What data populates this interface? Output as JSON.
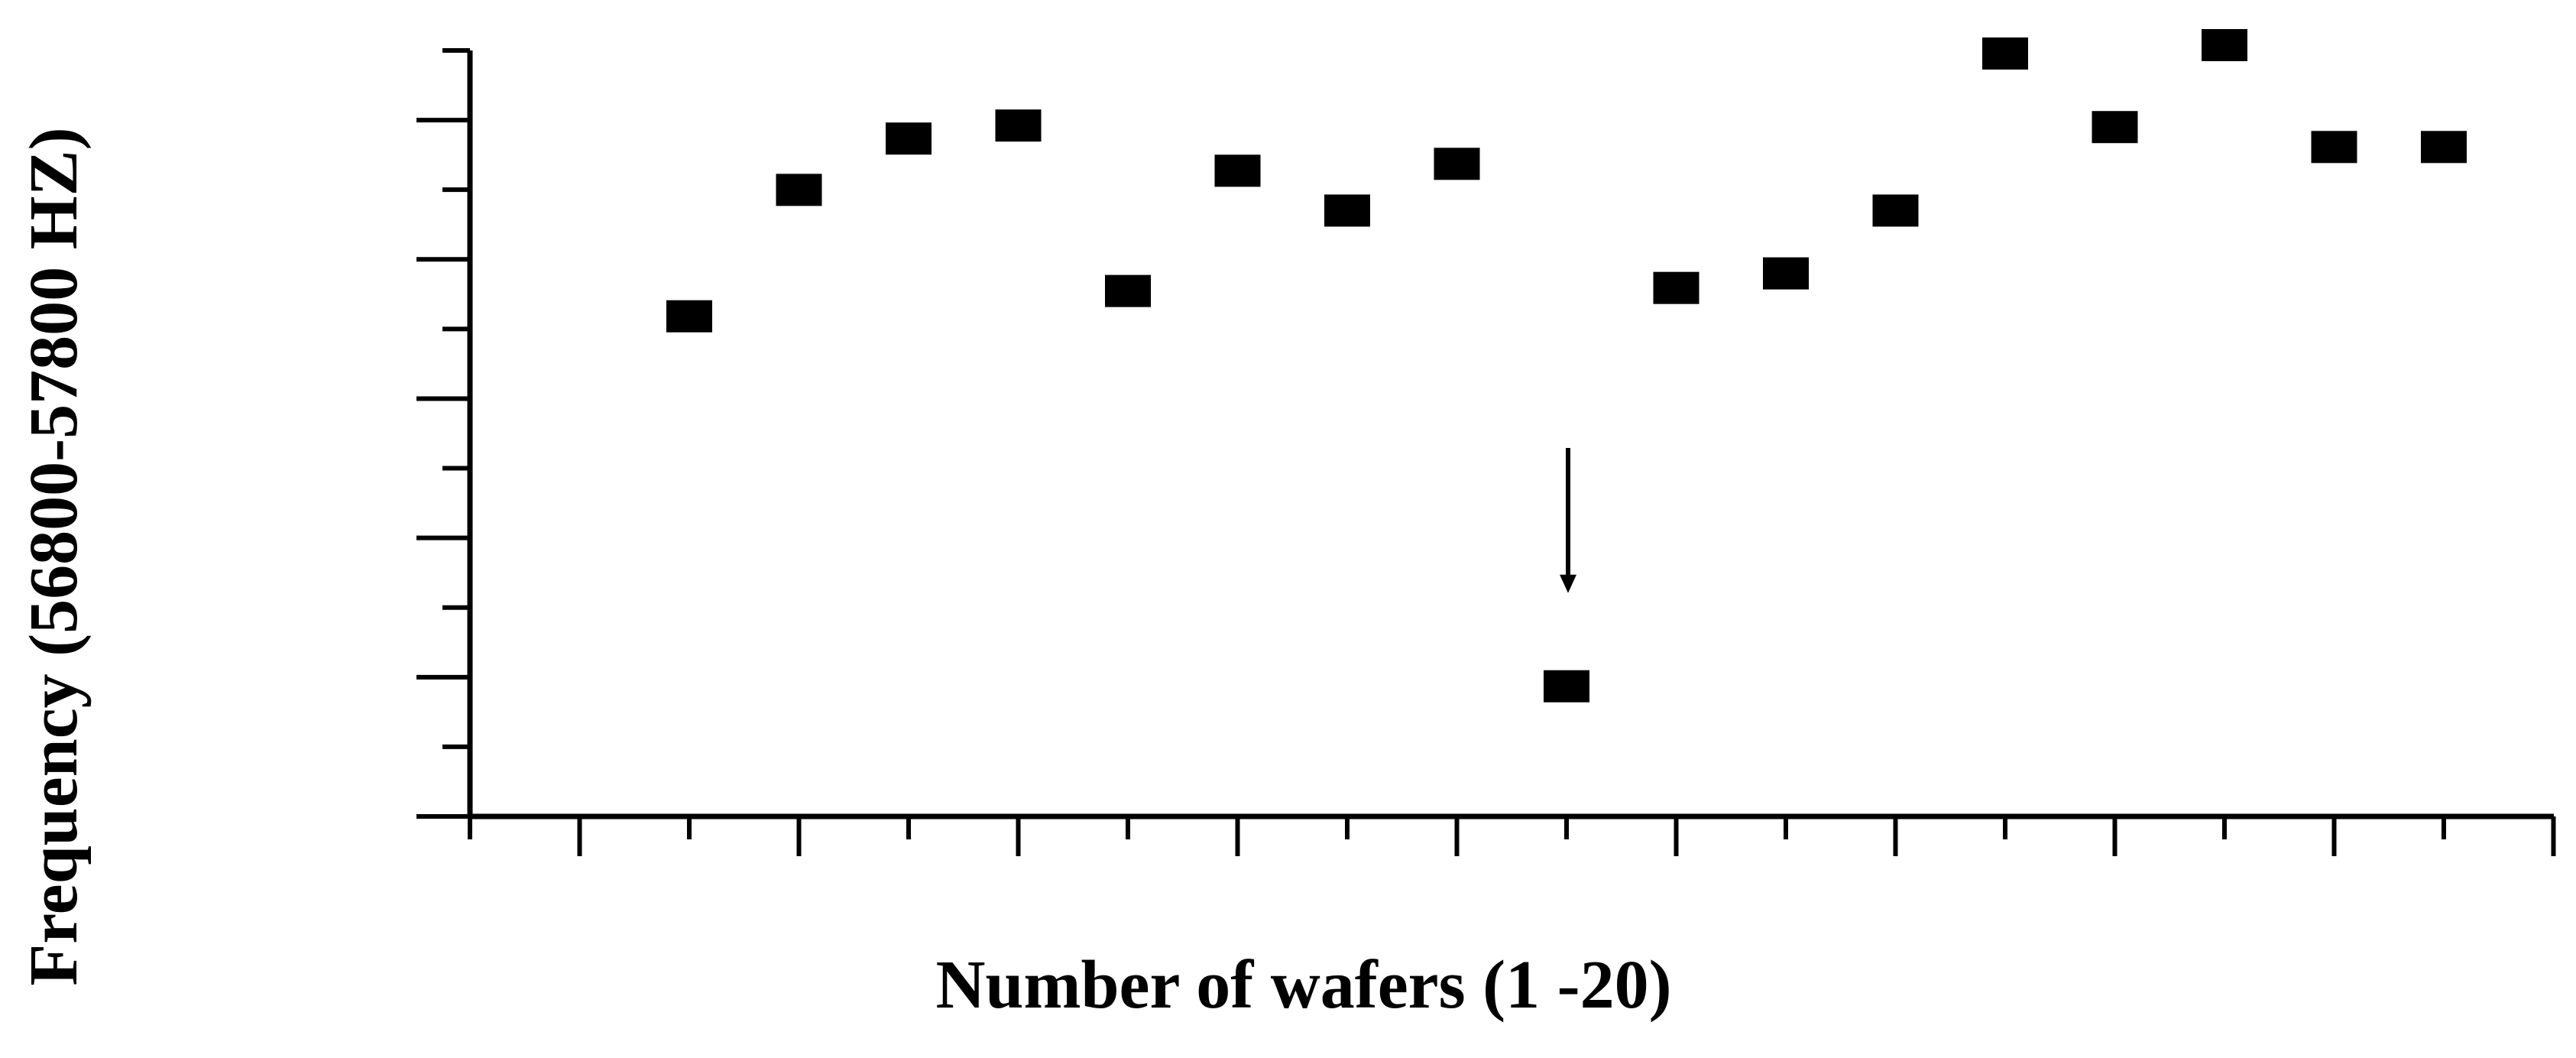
{
  "chart_data": {
    "type": "scatter",
    "title": "",
    "xlabel": "Number of wafers (1 -20)",
    "ylabel": "Frequency (56800-57800 HZ)",
    "xlim": [
      1,
      20
    ],
    "ylim": [
      56800,
      57800
    ],
    "grid": false,
    "legend": "none",
    "marker": "square",
    "marker_color": "#000000",
    "x": [
      3,
      4,
      5,
      6,
      7,
      8,
      9,
      10,
      11,
      12,
      13,
      14,
      15,
      16,
      17,
      18,
      19
    ],
    "y": [
      57437,
      57602,
      57669,
      57686,
      57470,
      57627,
      57575,
      57636,
      56954,
      57474,
      57493,
      57575,
      57780,
      57684,
      57791,
      57658,
      57658
    ],
    "annotations": [
      {
        "type": "arrow",
        "points_to_x": 11,
        "points_to_y": 56954
      }
    ]
  }
}
